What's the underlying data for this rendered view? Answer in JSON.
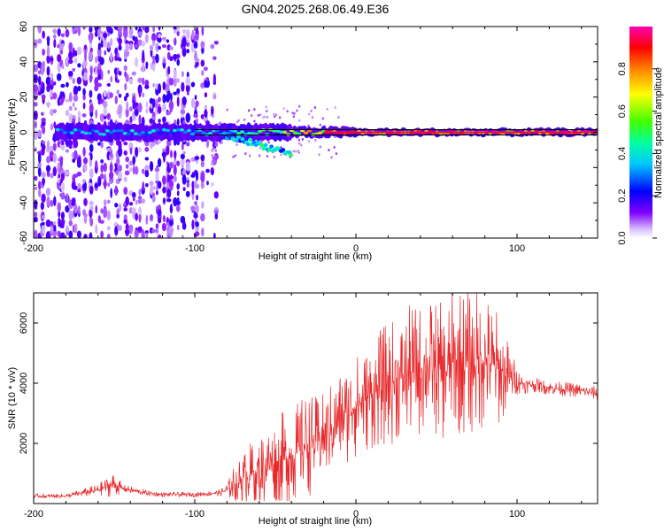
{
  "title": "GN04.2025.268.06.49.E36",
  "chart_data": [
    {
      "type": "heatmap",
      "xlabel": "Height of straight line (km)",
      "ylabel": "Frequency (Hz)",
      "xlim": [
        -200,
        150
      ],
      "ylim": [
        -60,
        60
      ],
      "x_ticks": [
        -200,
        -100,
        0,
        100
      ],
      "y_ticks": [
        -60,
        -40,
        -20,
        0,
        20,
        40,
        60
      ],
      "x_ticklabels": [
        "-200",
        "-100",
        "0",
        "100"
      ],
      "y_ticklabels": [
        "-60",
        "-40",
        "-20",
        "0",
        "20",
        "40",
        "60"
      ],
      "colorbar": {
        "label": "Normalized spectral amplitude",
        "range": [
          0.0,
          1.0
        ],
        "ticks": [
          0.0,
          0.2,
          0.4,
          0.6,
          0.8
        ],
        "ticklabels": [
          "0.0",
          "0.2",
          "0.4",
          "0.6",
          "0.8"
        ],
        "colormap": [
          "#f7f0ff",
          "#8000ff",
          "#0000ff",
          "#00ffff",
          "#00ff00",
          "#ffff00",
          "#ff8000",
          "#ff0000",
          "#ff00b0"
        ]
      },
      "features": {
        "carrier_line_hz": 0,
        "carrier_band_hz": [
          -1.5,
          1.5
        ],
        "scatter_region_x": [
          -200,
          -85
        ],
        "scatter_region_y": [
          -60,
          60
        ],
        "core_track": [
          {
            "x": -200,
            "amp": 0.35
          },
          {
            "x": -150,
            "amp": 0.4
          },
          {
            "x": -100,
            "amp": 0.4
          },
          {
            "x": -70,
            "amp": 0.45
          },
          {
            "x": -40,
            "amp": 0.6
          },
          {
            "x": -20,
            "amp": 0.85
          },
          {
            "x": 0,
            "amp": 0.95
          },
          {
            "x": 50,
            "amp": 0.9
          },
          {
            "x": 100,
            "amp": 0.95
          },
          {
            "x": 150,
            "amp": 0.95
          }
        ]
      }
    },
    {
      "type": "line",
      "xlabel": "Height of straight line (km)",
      "ylabel": "SNR (10 * v/v)",
      "xlim": [
        -200,
        150
      ],
      "ylim": [
        0,
        7000
      ],
      "x_ticks": [
        -200,
        -100,
        0,
        100
      ],
      "y_ticks": [
        2000,
        4000,
        6000
      ],
      "x_ticklabels": [
        "-200",
        "-100",
        "0",
        "100"
      ],
      "y_ticklabels": [
        "2000",
        "4000",
        "6000"
      ],
      "color": "#e8282a",
      "series": [
        {
          "x": [
            -200,
            -180,
            -160,
            -150,
            -145,
            -130,
            -120,
            -100,
            -85,
            -80,
            -75,
            -70,
            -65,
            -60,
            -55,
            -50,
            -45,
            -40,
            -35,
            -30,
            -25,
            -20,
            -15,
            -10,
            -5,
            0,
            5,
            10,
            15,
            20,
            25,
            30,
            35,
            40,
            45,
            50,
            55,
            60,
            65,
            70,
            75,
            80,
            85,
            90,
            95,
            100,
            105,
            110,
            120,
            130,
            140,
            150
          ],
          "values": [
            250,
            250,
            450,
            650,
            500,
            350,
            300,
            300,
            350,
            450,
            650,
            850,
            1000,
            1100,
            1300,
            1400,
            1500,
            1550,
            1800,
            2000,
            2000,
            2200,
            2500,
            2800,
            3100,
            3250,
            3400,
            3650,
            3800,
            4000,
            4100,
            4200,
            4400,
            4450,
            4600,
            4500,
            4300,
            4700,
            4800,
            4700,
            4700,
            4800,
            4600,
            4400,
            4200,
            4100,
            3950,
            3950,
            3850,
            3800,
            3750,
            3650
          ],
          "noise_amplitude": [
            70,
            80,
            200,
            450,
            150,
            100,
            80,
            80,
            100,
            250,
            700,
            900,
            1100,
            1300,
            1400,
            1500,
            1600,
            1600,
            1700,
            1800,
            1600,
            1500,
            1600,
            1700,
            1800,
            1800,
            1800,
            1900,
            2000,
            2100,
            2100,
            2200,
            2300,
            2300,
            2300,
            2300,
            2300,
            2500,
            2600,
            2500,
            2500,
            2400,
            2200,
            1800,
            1200,
            500,
            300,
            250,
            250,
            250,
            250,
            250
          ]
        }
      ]
    }
  ]
}
